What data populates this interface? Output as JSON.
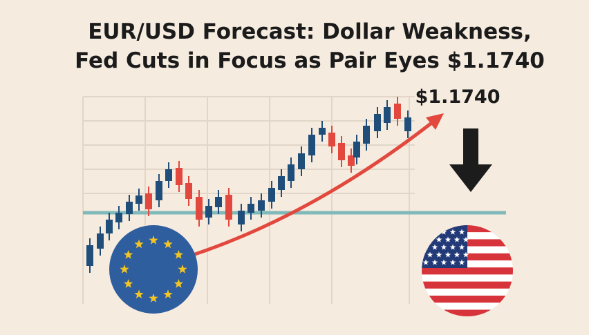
{
  "header": {
    "title_lines": [
      "EUR/USD Forecast: Dollar Weakness,",
      "Fed Cuts in Focus as Pair Eyes $1.1740"
    ]
  },
  "illustration": {
    "target_label": "$1.1740"
  }
}
